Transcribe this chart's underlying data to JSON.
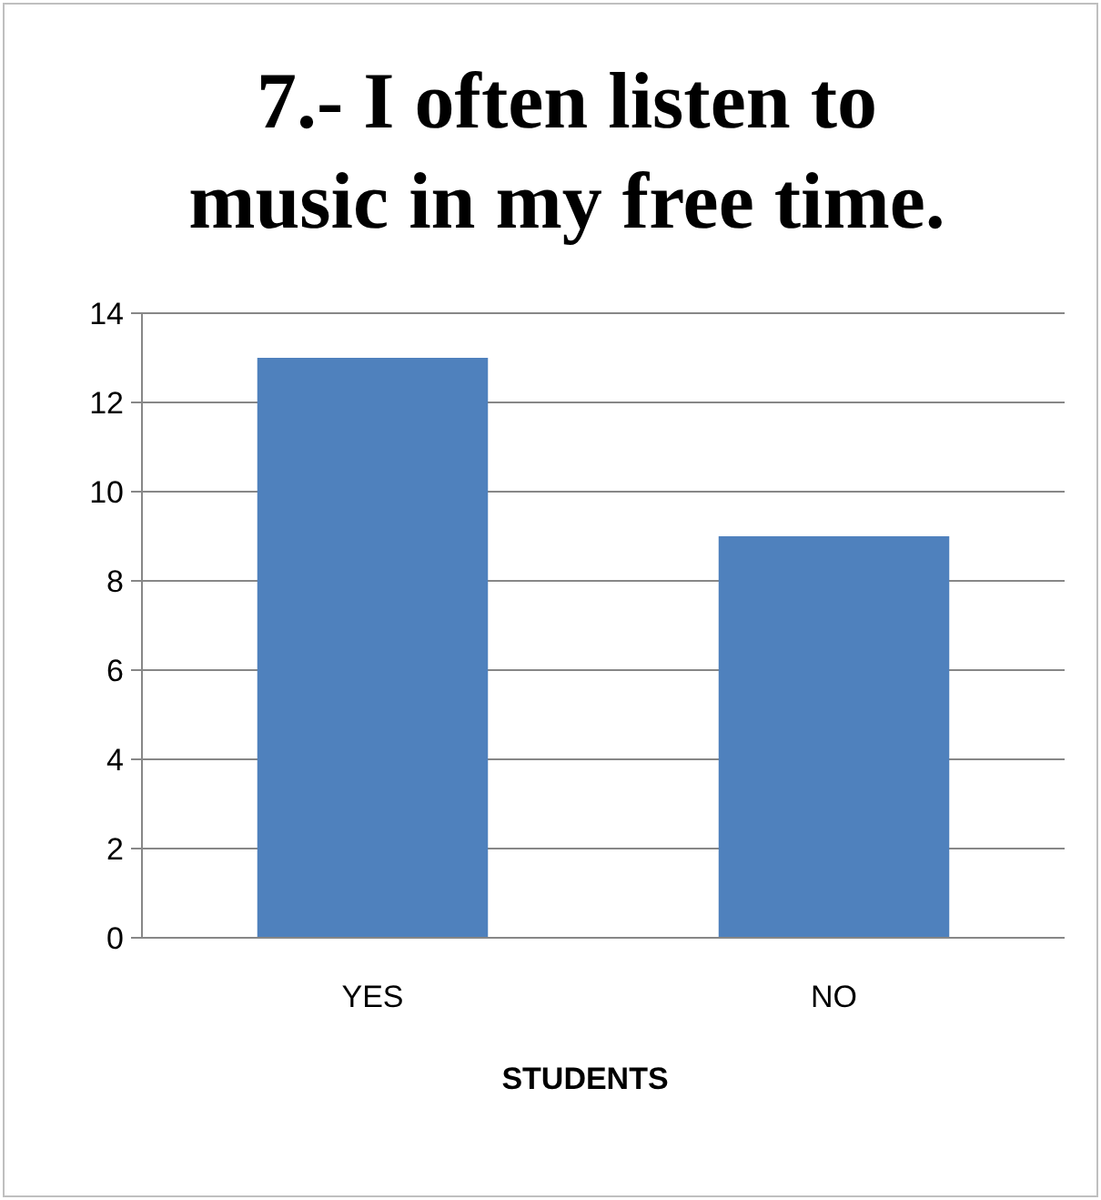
{
  "chart_data": {
    "type": "bar",
    "title": "7.- I often listen to music in my free time.",
    "xlabel": "STUDENTS",
    "categories": [
      "YES",
      "NO"
    ],
    "values": [
      13,
      9
    ],
    "color": "#4f81bd",
    "ylim": [
      0,
      14
    ],
    "yticks": [
      0,
      2,
      4,
      6,
      8,
      10,
      12,
      14
    ],
    "grid": "y"
  }
}
